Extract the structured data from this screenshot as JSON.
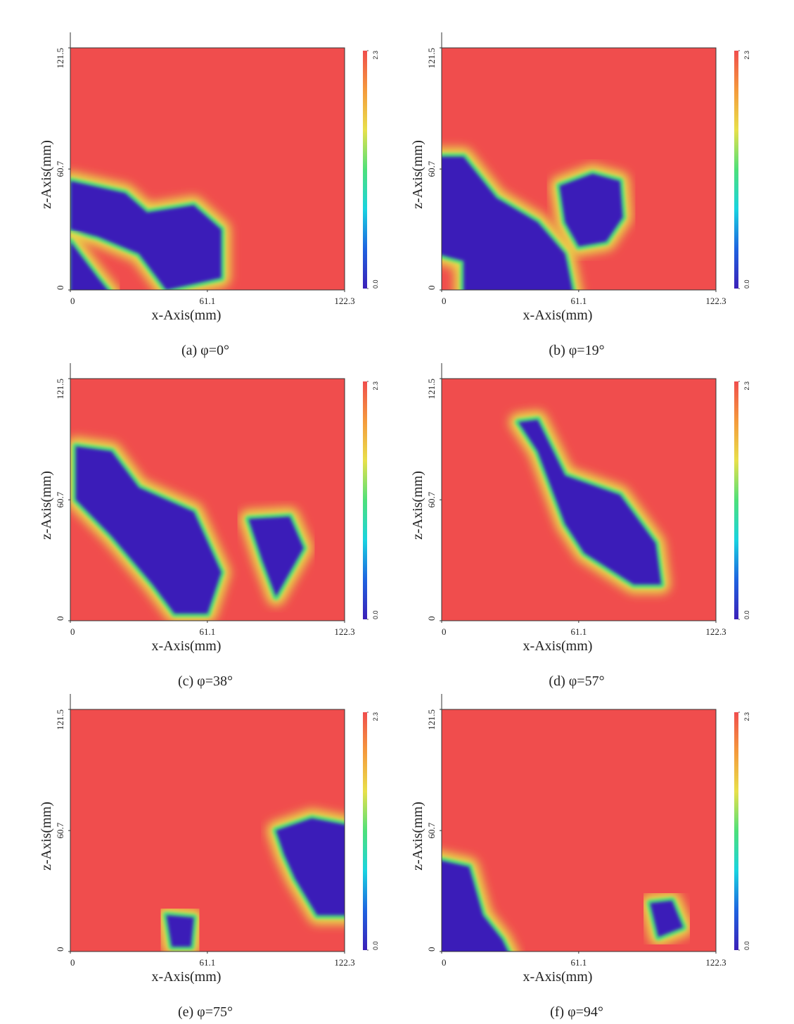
{
  "charts": [
    {
      "type": "heatmap",
      "caption": "(a)  φ=0°",
      "xlabel": "x-Axis(mm)",
      "ylabel": "z-Axis(mm)",
      "xlim": [
        0,
        122.3
      ],
      "ylim": [
        0,
        121.5
      ],
      "xticks": [
        0,
        61.1,
        122.3
      ],
      "yticks": [
        0,
        60.7,
        121.5
      ],
      "clim": [
        0,
        2.3
      ],
      "cticks": [
        {
          "value": 0,
          "label": "0.0"
        },
        2.3
      ],
      "colormap": [
        "#3b1fb8",
        "#1e63e0",
        "#19d3e0",
        "#4de07a",
        "#e8e04a",
        "#f59a3c",
        "#f04d4d"
      ]
    },
    {
      "type": "heatmap",
      "caption": "(b)  φ=19°",
      "xlabel": "x-Axis(mm)",
      "ylabel": "z-Axis(mm)",
      "xlim": [
        0,
        122.3
      ],
      "ylim": [
        0,
        121.5
      ],
      "xticks": [
        0,
        61.1,
        122.3
      ],
      "yticks": [
        0,
        60.7,
        121.5
      ],
      "clim": [
        0,
        2.3
      ],
      "cticks": [
        {
          "value": 0,
          "label": "0.0"
        },
        2.3
      ],
      "colormap": [
        "#3b1fb8",
        "#1e63e0",
        "#19d3e0",
        "#4de07a",
        "#e8e04a",
        "#f59a3c",
        "#f04d4d"
      ]
    },
    {
      "type": "heatmap",
      "caption": "(c)  φ=38°",
      "xlabel": "x-Axis(mm)",
      "ylabel": "z-Axis(mm)",
      "xlim": [
        0,
        122.3
      ],
      "ylim": [
        0,
        121.5
      ],
      "xticks": [
        0,
        61.1,
        122.3
      ],
      "yticks": [
        0,
        60.7,
        121.5
      ],
      "clim": [
        0,
        2.3
      ],
      "cticks": [
        {
          "value": 0,
          "label": "0.0"
        },
        2.3
      ],
      "colormap": [
        "#3b1fb8",
        "#1e63e0",
        "#19d3e0",
        "#4de07a",
        "#e8e04a",
        "#f59a3c",
        "#f04d4d"
      ]
    },
    {
      "type": "heatmap",
      "caption": "(d)  φ=57°",
      "xlabel": "x-Axis(mm)",
      "ylabel": "z-Axis(mm)",
      "xlim": [
        0,
        122.3
      ],
      "ylim": [
        0,
        121.5
      ],
      "xticks": [
        0,
        61.1,
        122.3
      ],
      "yticks": [
        0,
        60.7,
        121.5
      ],
      "clim": [
        0,
        2.3
      ],
      "cticks": [
        {
          "value": 0,
          "label": "0.0"
        },
        2.3
      ],
      "colormap": [
        "#3b1fb8",
        "#1e63e0",
        "#19d3e0",
        "#4de07a",
        "#e8e04a",
        "#f59a3c",
        "#f04d4d"
      ]
    },
    {
      "type": "heatmap",
      "caption": "(e)  φ=75°",
      "xlabel": "x-Axis(mm)",
      "ylabel": "z-Axis(mm)",
      "xlim": [
        0,
        122.3
      ],
      "ylim": [
        0,
        121.5
      ],
      "xticks": [
        0,
        61.1,
        122.3
      ],
      "yticks": [
        0,
        60.7,
        121.5
      ],
      "clim": [
        0,
        2.3
      ],
      "cticks": [
        {
          "value": 0,
          "label": "0.0"
        },
        2.3
      ],
      "colormap": [
        "#3b1fb8",
        "#1e63e0",
        "#19d3e0",
        "#4de07a",
        "#e8e04a",
        "#f59a3c",
        "#f04d4d"
      ]
    },
    {
      "type": "heatmap",
      "caption": "(f)  φ=94°",
      "xlabel": "x-Axis(mm)",
      "ylabel": "z-Axis(mm)",
      "xlim": [
        0,
        122.3
      ],
      "ylim": [
        0,
        121.5
      ],
      "xticks": [
        0,
        61.1,
        122.3
      ],
      "yticks": [
        0,
        60.7,
        121.5
      ],
      "clim": [
        0,
        2.3
      ],
      "cticks": [
        {
          "value": 0,
          "label": "0.0"
        },
        2.3
      ],
      "colormap": [
        "#3b1fb8",
        "#1e63e0",
        "#19d3e0",
        "#4de07a",
        "#e8e04a",
        "#f59a3c",
        "#f04d4d"
      ]
    }
  ]
}
